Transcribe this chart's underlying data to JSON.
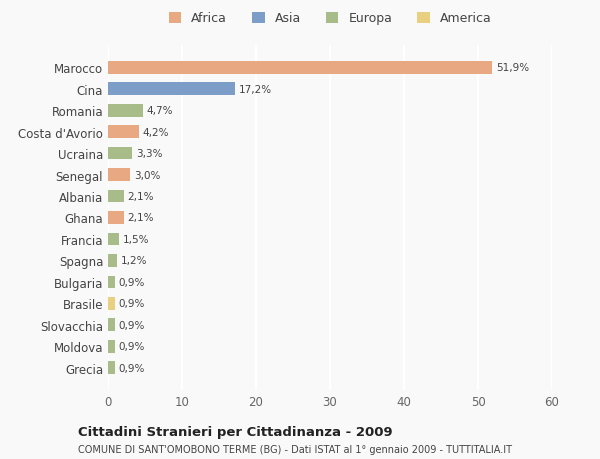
{
  "categories": [
    "Marocco",
    "Cina",
    "Romania",
    "Costa d'Avorio",
    "Ucraina",
    "Senegal",
    "Albania",
    "Ghana",
    "Francia",
    "Spagna",
    "Bulgaria",
    "Brasile",
    "Slovacchia",
    "Moldova",
    "Grecia"
  ],
  "values": [
    51.9,
    17.2,
    4.7,
    4.2,
    3.3,
    3.0,
    2.1,
    2.1,
    1.5,
    1.2,
    0.9,
    0.9,
    0.9,
    0.9,
    0.9
  ],
  "labels": [
    "51,9%",
    "17,2%",
    "4,7%",
    "4,2%",
    "3,3%",
    "3,0%",
    "2,1%",
    "2,1%",
    "1,5%",
    "1,2%",
    "0,9%",
    "0,9%",
    "0,9%",
    "0,9%",
    "0,9%"
  ],
  "continents": [
    "Africa",
    "Asia",
    "Europa",
    "Africa",
    "Europa",
    "Africa",
    "Europa",
    "Africa",
    "Europa",
    "Europa",
    "Europa",
    "America",
    "Europa",
    "Europa",
    "Europa"
  ],
  "continent_colors": {
    "Africa": "#E8A882",
    "Asia": "#7B9DC7",
    "Europa": "#A8BC8A",
    "America": "#E8D080"
  },
  "legend_labels": [
    "Africa",
    "Asia",
    "Europa",
    "America"
  ],
  "legend_colors": [
    "#E8A882",
    "#7B9DC7",
    "#A8BC8A",
    "#E8D080"
  ],
  "title1": "Cittadini Stranieri per Cittadinanza - 2009",
  "title2": "COMUNE DI SANT'OMOBONO TERME (BG) - Dati ISTAT al 1° gennaio 2009 - TUTTITALIA.IT",
  "xlim": [
    0,
    60
  ],
  "xticks": [
    0,
    10,
    20,
    30,
    40,
    50,
    60
  ],
  "background_color": "#f9f9f9",
  "grid_color": "#ffffff",
  "bar_height": 0.6
}
